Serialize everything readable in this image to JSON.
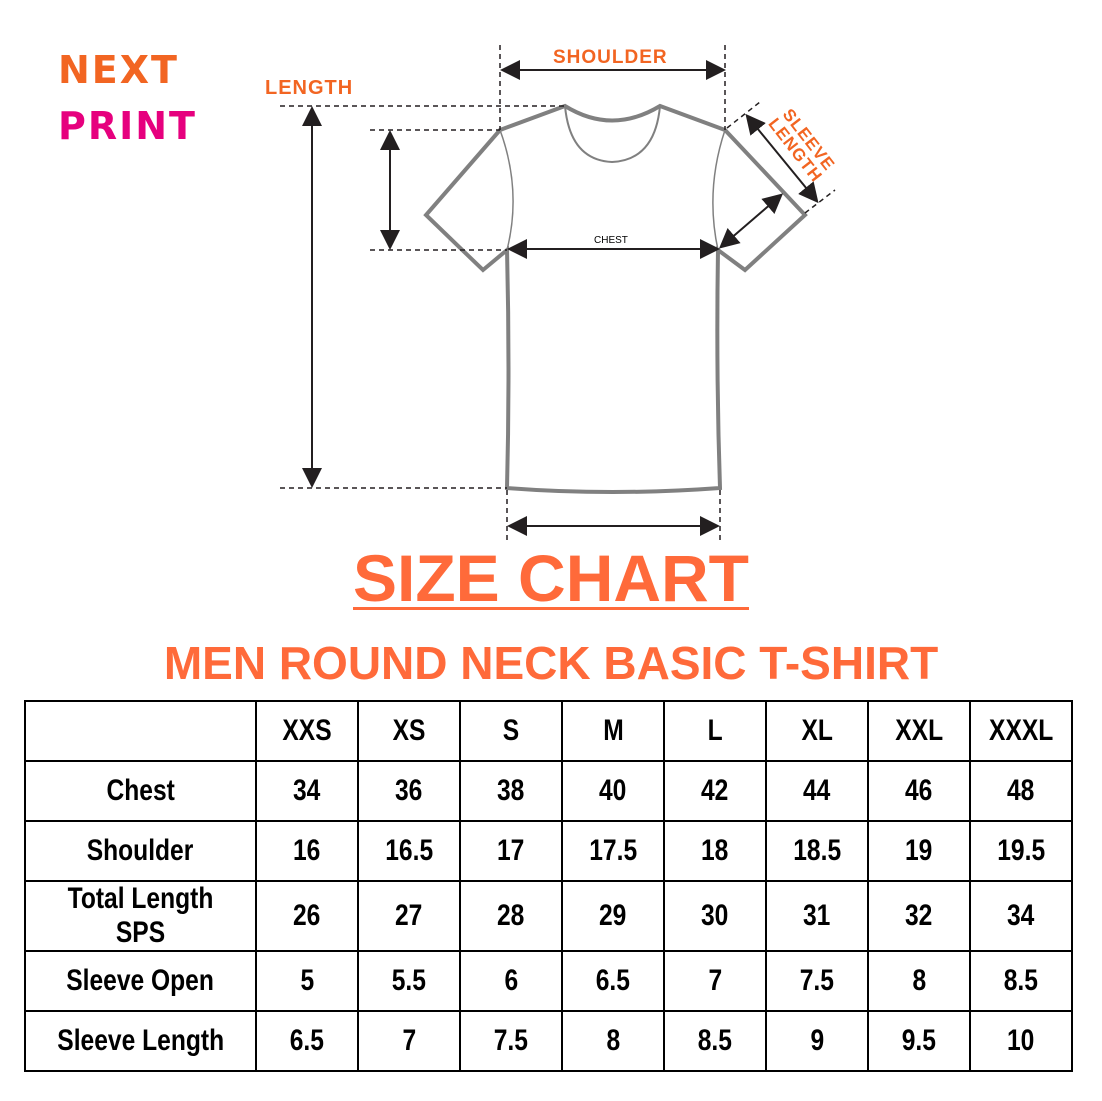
{
  "brand": {
    "line1": "NEXT",
    "line2": "PRINT",
    "colors": {
      "orange": "#f26522",
      "magenta": "#e6007e"
    }
  },
  "diagram": {
    "labels": {
      "length": "LENGTH",
      "shoulder": "SHOULDER",
      "sleeve_length": "SLEEVE LENGTH",
      "chest": "CHEST"
    }
  },
  "title": "SIZE CHART",
  "subtitle": "MEN ROUND NECK BASIC T-SHIRT",
  "table": {
    "sizes": [
      "XXS",
      "XS",
      "S",
      "M",
      "L",
      "XL",
      "XXL",
      "XXXL"
    ],
    "rows": [
      {
        "label": "Chest",
        "values": [
          "34",
          "36",
          "38",
          "40",
          "42",
          "44",
          "46",
          "48"
        ]
      },
      {
        "label": "Shoulder",
        "values": [
          "16",
          "16.5",
          "17",
          "17.5",
          "18",
          "18.5",
          "19",
          "19.5"
        ]
      },
      {
        "label": "Total Length SPS",
        "values": [
          "26",
          "27",
          "28",
          "29",
          "30",
          "31",
          "32",
          "34"
        ]
      },
      {
        "label": "Sleeve Open",
        "values": [
          "5",
          "5.5",
          "6",
          "6.5",
          "7",
          "7.5",
          "8",
          "8.5"
        ]
      },
      {
        "label": "Sleeve Length",
        "values": [
          "6.5",
          "7",
          "7.5",
          "8",
          "8.5",
          "9",
          "9.5",
          "10"
        ]
      }
    ]
  }
}
